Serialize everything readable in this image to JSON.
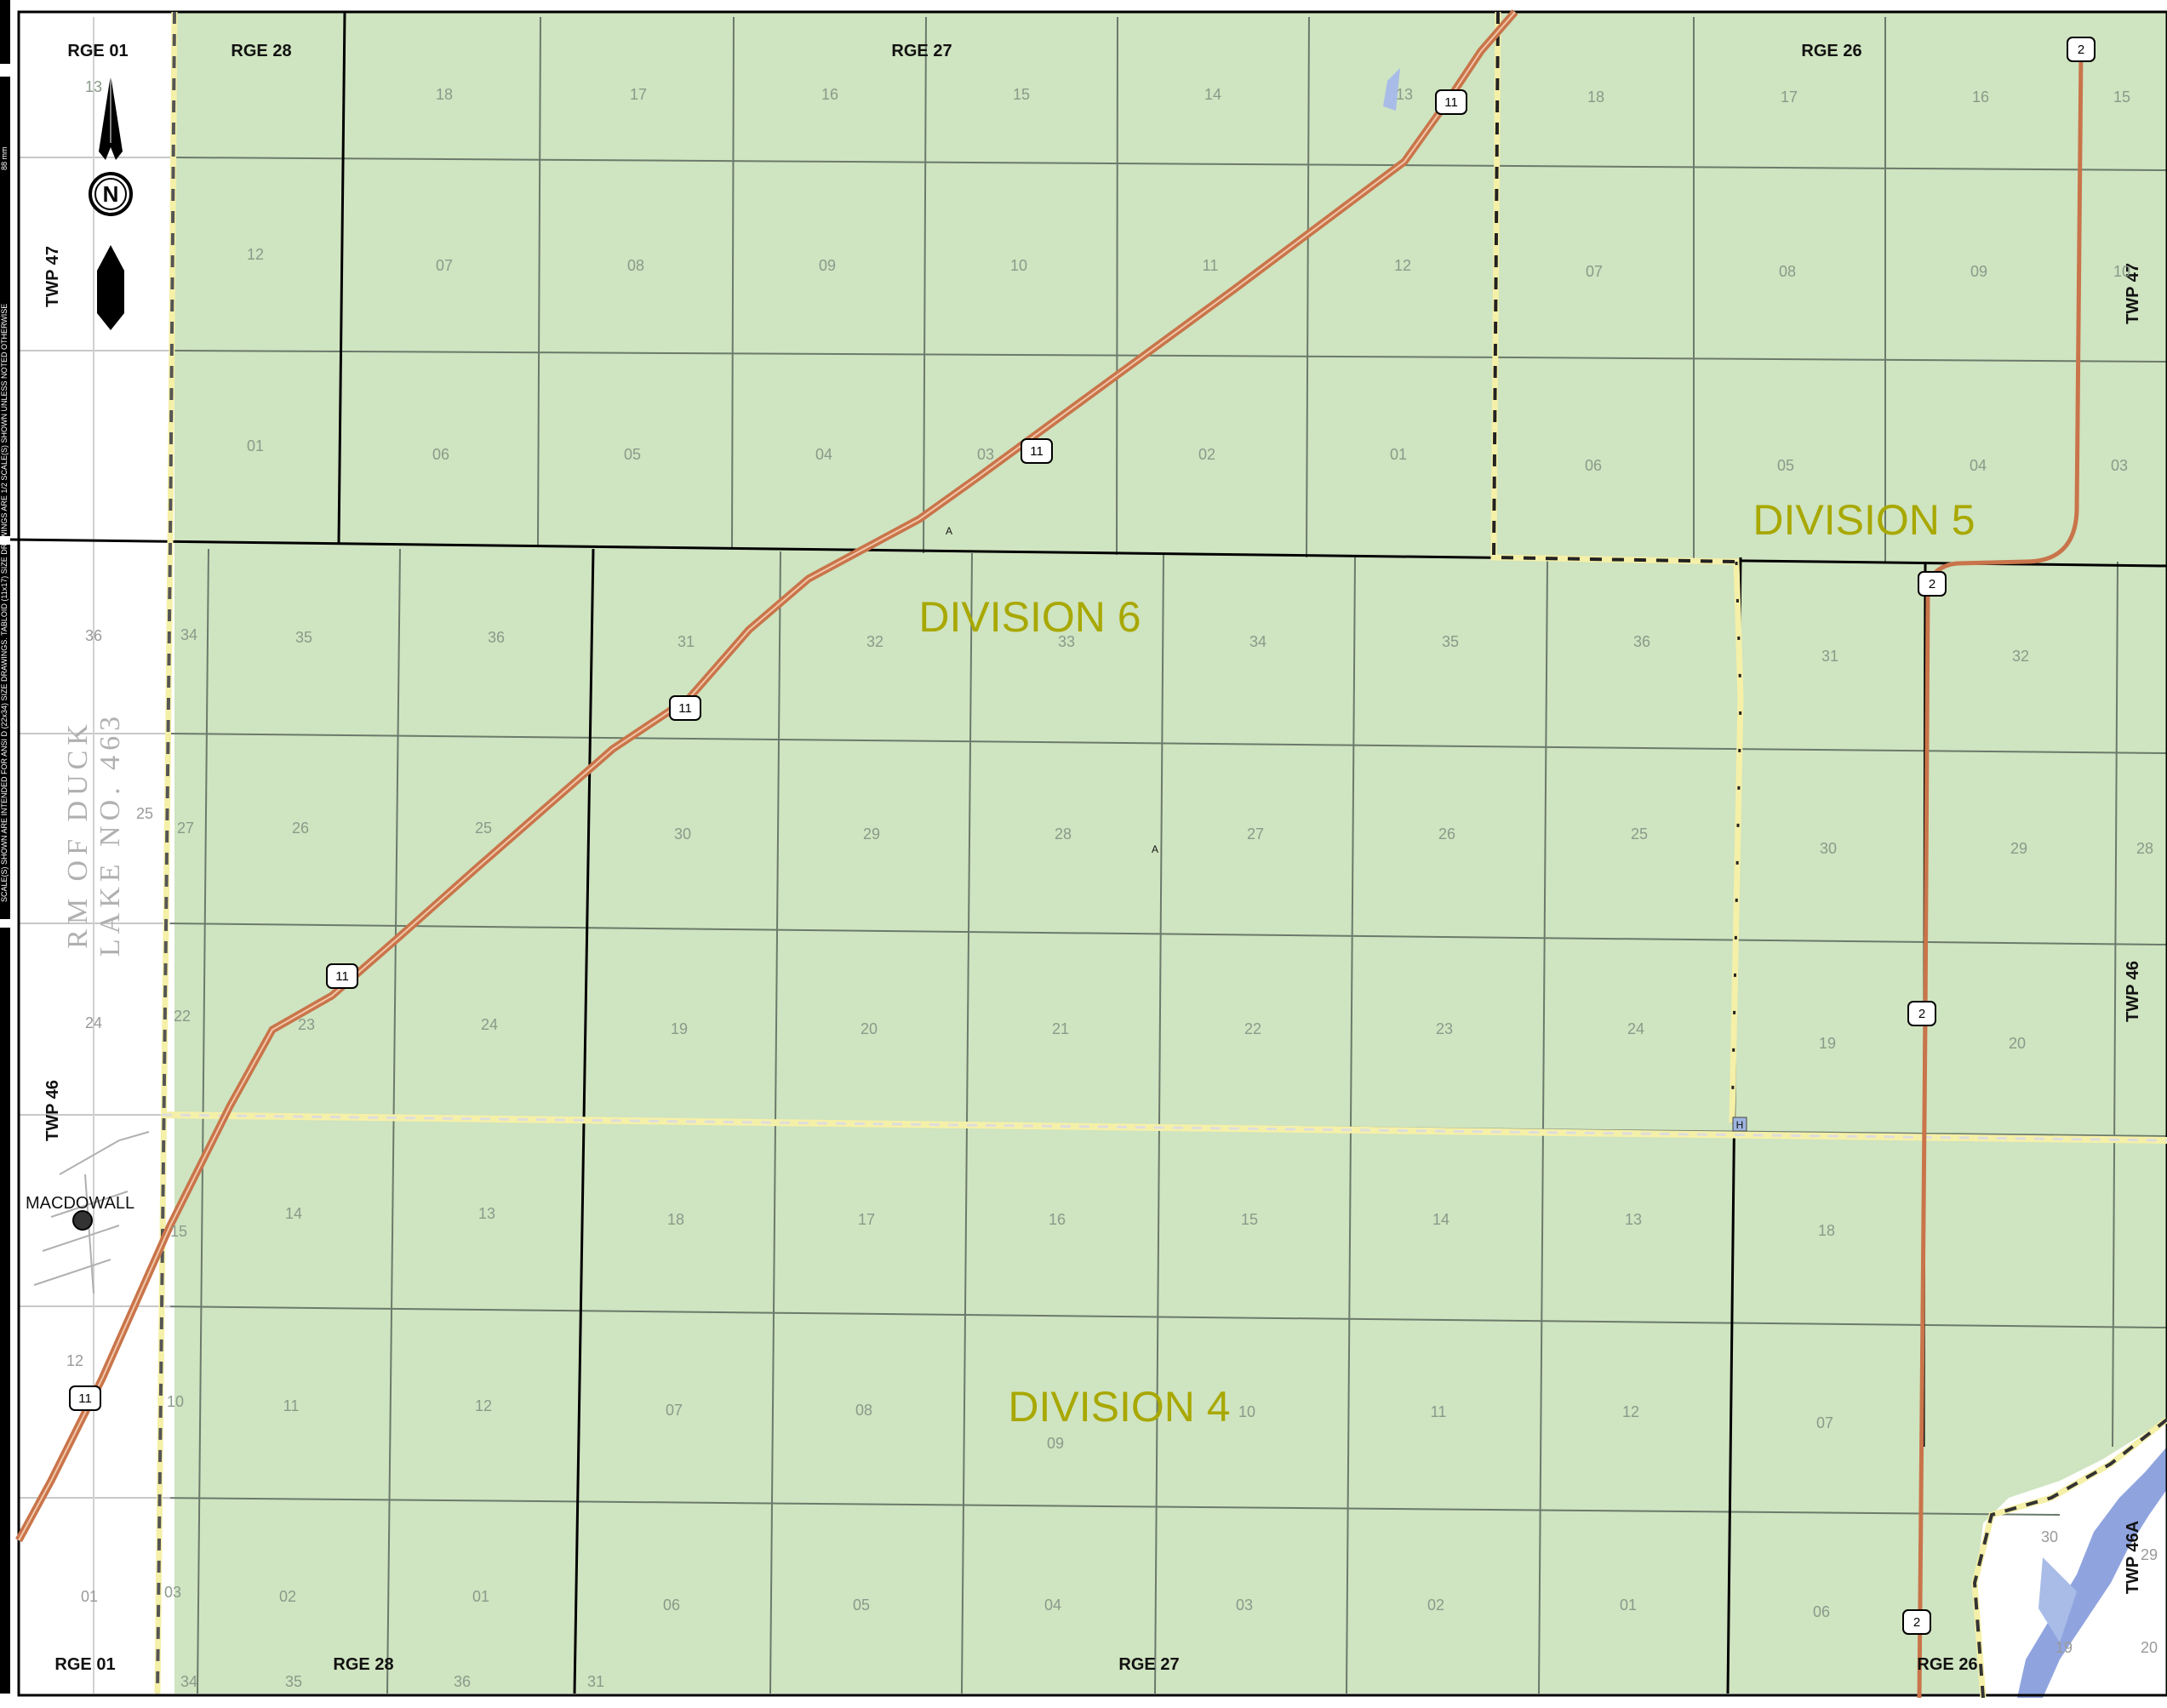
{
  "map": {
    "divisions": [
      {
        "id": "division-6",
        "label": "DIVISION 6"
      },
      {
        "id": "division-5",
        "label": "DIVISION 5"
      },
      {
        "id": "division-4",
        "label": "DIVISION 4"
      }
    ],
    "range_labels_top": [
      "RGE 01",
      "RGE 28",
      "RGE 27",
      "RGE 26"
    ],
    "range_labels_bottom": [
      "RGE 01",
      "RGE 28",
      "RGE 27",
      "RGE 26"
    ],
    "township_labels": [
      "TWP 47",
      "TWP 46",
      "TWP 47",
      "TWP 46",
      "TWP 46A"
    ],
    "neighbour_rm": [
      "RM OF DUCK",
      "LAKE NO. 463"
    ],
    "place_name": "MACDOWALL",
    "north_arrow_letter": "N",
    "highway_11_label": "11",
    "highway_2_label": "2",
    "margin_note_1": "SCALE(S) SHOWN ARE INTENDED FOR ANSI D (22x34) SIZE DRAWINGS. TABLOID (11x17) SIZE DRAWINGS ARE 1/2 SCALE(S) SHOWN UNLESS NOTED OTHERWISE",
    "margin_note_2": "88 mm",
    "point_label_a": "A",
    "point_label_h": "H",
    "sections": {
      "twp47_rge28": [
        "13",
        "12",
        "01"
      ],
      "twp47_rge27_row1": [
        "18",
        "17",
        "16",
        "15",
        "14",
        "13"
      ],
      "twp47_rge27_row2": [
        "07",
        "08",
        "09",
        "10",
        "11",
        "12"
      ],
      "twp47_rge27_row3": [
        "06",
        "05",
        "04",
        "03",
        "02",
        "01"
      ],
      "twp47_rge26_row1": [
        "18",
        "17",
        "16",
        "15"
      ],
      "twp47_rge26_row2": [
        "07",
        "08",
        "09",
        "10"
      ],
      "twp47_rge26_row3": [
        "06",
        "05",
        "04",
        "03"
      ],
      "twp46_rge28_col": [
        "34",
        "27",
        "22",
        "15",
        "10",
        "03"
      ],
      "twp46_rge28_row1": [
        "35",
        "36"
      ],
      "twp46_rge28_row2": [
        "26",
        "25"
      ],
      "twp46_rge28_row3": [
        "23",
        "24"
      ],
      "twp46_rge28_row4": [
        "14",
        "13"
      ],
      "twp46_rge28_row5": [
        "11",
        "12"
      ],
      "twp46_rge28_row6": [
        "02",
        "01"
      ],
      "twp46_rge27_row1": [
        "31",
        "32",
        "33",
        "34",
        "35",
        "36"
      ],
      "twp46_rge27_row2": [
        "30",
        "29",
        "28",
        "27",
        "26",
        "25"
      ],
      "twp46_rge27_row3": [
        "19",
        "20",
        "21",
        "22",
        "23",
        "24"
      ],
      "twp46_rge27_row4": [
        "18",
        "17",
        "16",
        "15",
        "14",
        "13"
      ],
      "twp46_rge27_row5": [
        "07",
        "08",
        "09",
        "10",
        "11",
        "12"
      ],
      "twp46_rge27_row6": [
        "06",
        "05",
        "04",
        "03",
        "02",
        "01"
      ],
      "twp46_rge26_row1": [
        "31",
        "32"
      ],
      "twp46_rge26_row2": [
        "30",
        "29",
        "28"
      ],
      "twp46_rge26_row3": [
        "19",
        "20"
      ],
      "twp46_rge26_row4": [
        "18"
      ],
      "twp46_rge26_row5": [
        "07"
      ],
      "twp46_rge26_row6": [
        "06"
      ],
      "west_col": [
        "36",
        "25",
        "24",
        "12",
        "01"
      ],
      "bottom_row": [
        "34",
        "35",
        "36",
        "31"
      ],
      "southeast": [
        "30",
        "29",
        "19",
        "20"
      ]
    }
  },
  "colors": {
    "land": "#cfe4c0",
    "grid": "#5d6b5d",
    "range_line": "#000000",
    "highway": "#c9744a",
    "division_boundary_light": "#f5f0a8",
    "division_text": "#a8a800",
    "water": "#7b94d9"
  }
}
